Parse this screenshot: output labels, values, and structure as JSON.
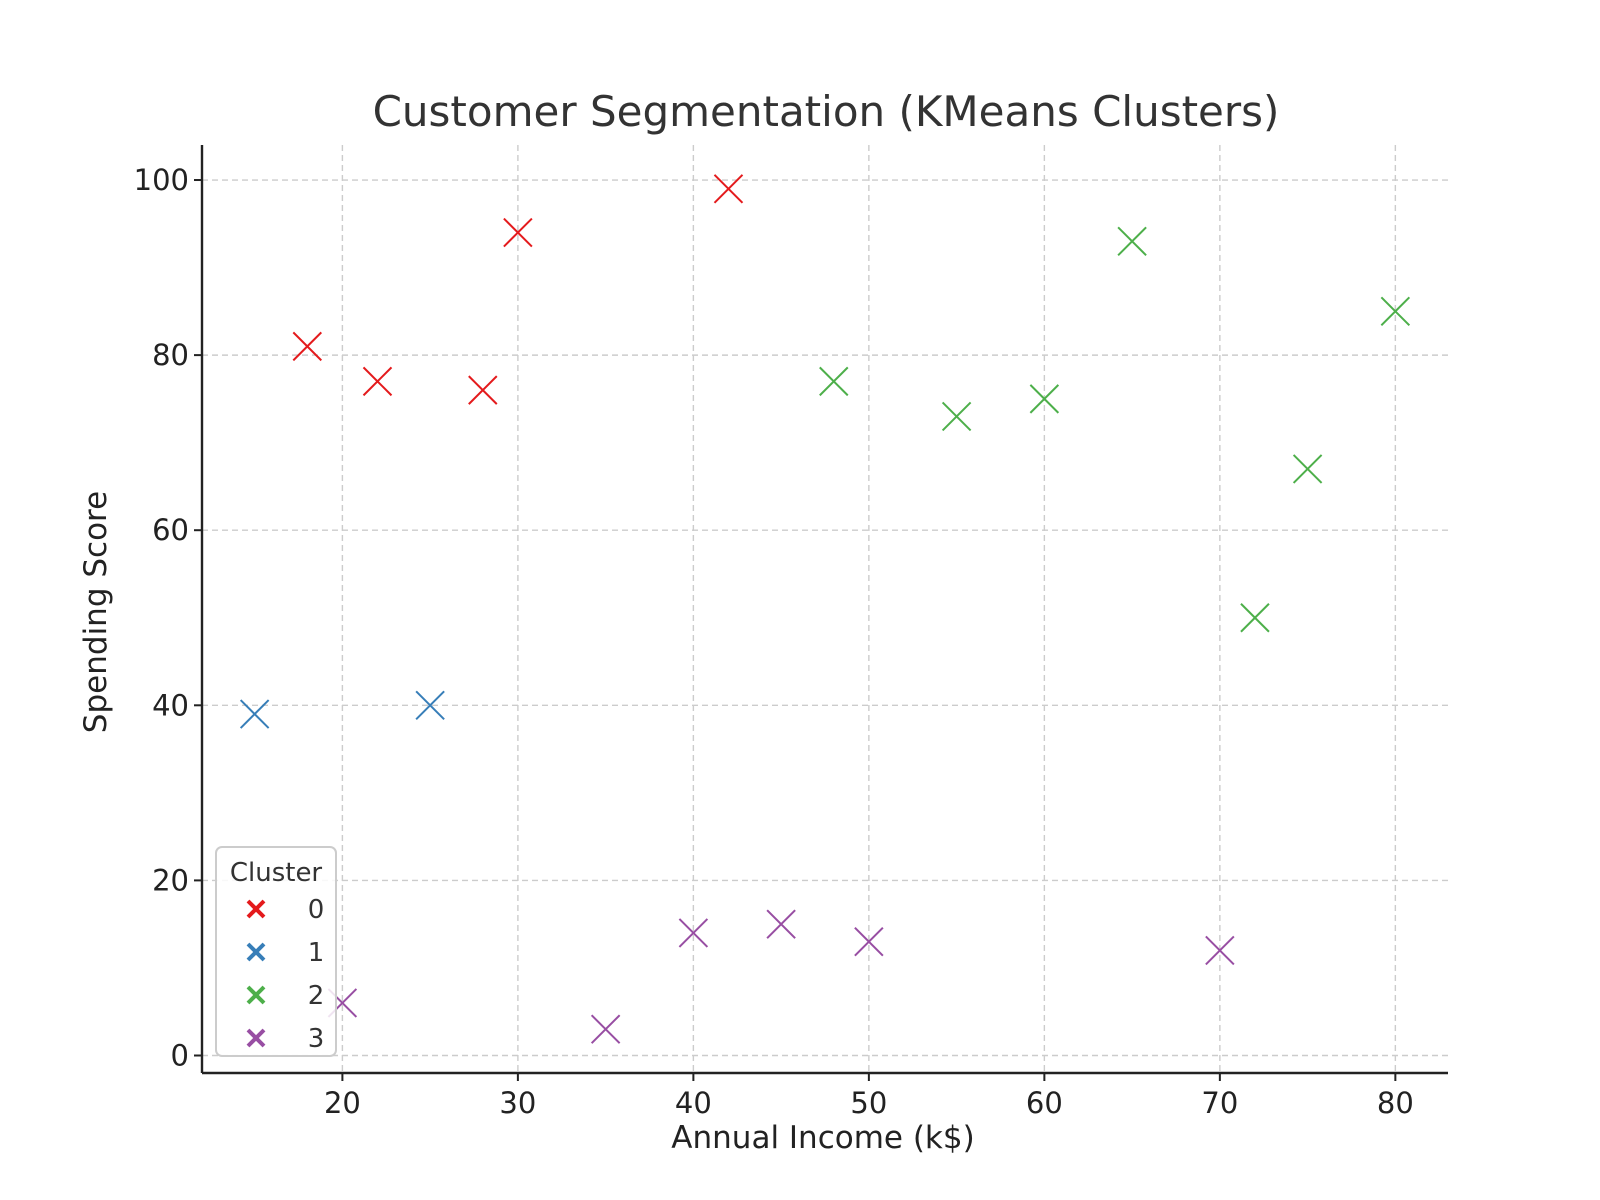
{
  "chart_data": {
    "type": "scatter",
    "title": "Customer Segmentation (KMeans Clusters)",
    "xlabel": "Annual Income (k$)",
    "ylabel": "Spending Score",
    "xlim": [
      12,
      83
    ],
    "ylim": [
      -2,
      104
    ],
    "xticks": [
      20,
      30,
      40,
      50,
      60,
      70,
      80
    ],
    "yticks": [
      0,
      20,
      40,
      60,
      80,
      100
    ],
    "grid": true,
    "marker": "x",
    "legend": {
      "title": "Cluster",
      "position": "lower-left"
    },
    "series": [
      {
        "name": "0",
        "color": "#e41a1c",
        "points": [
          {
            "x": 18,
            "y": 81
          },
          {
            "x": 22,
            "y": 77
          },
          {
            "x": 28,
            "y": 76
          },
          {
            "x": 30,
            "y": 94
          },
          {
            "x": 42,
            "y": 99
          }
        ]
      },
      {
        "name": "1",
        "color": "#377eb8",
        "points": [
          {
            "x": 15,
            "y": 39
          },
          {
            "x": 25,
            "y": 40
          }
        ]
      },
      {
        "name": "2",
        "color": "#4daf4a",
        "points": [
          {
            "x": 48,
            "y": 77
          },
          {
            "x": 55,
            "y": 73
          },
          {
            "x": 60,
            "y": 75
          },
          {
            "x": 65,
            "y": 93
          },
          {
            "x": 72,
            "y": 50
          },
          {
            "x": 75,
            "y": 67
          },
          {
            "x": 80,
            "y": 85
          }
        ]
      },
      {
        "name": "3",
        "color": "#984ea3",
        "points": [
          {
            "x": 20,
            "y": 6
          },
          {
            "x": 35,
            "y": 3
          },
          {
            "x": 40,
            "y": 14
          },
          {
            "x": 45,
            "y": 15
          },
          {
            "x": 50,
            "y": 13
          },
          {
            "x": 70,
            "y": 12
          }
        ]
      }
    ]
  }
}
